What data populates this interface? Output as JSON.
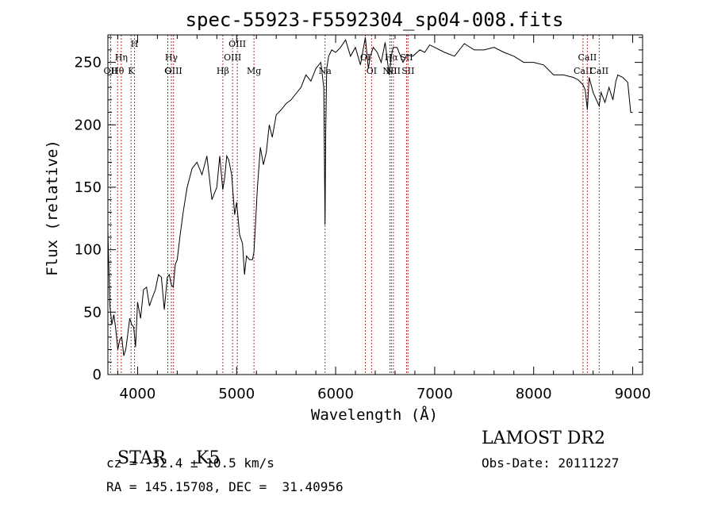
{
  "chart_data": {
    "type": "line",
    "title": "spec-55923-F5592304_sp04-008.fits",
    "xlabel": "Wavelength (Å)",
    "ylabel": "Flux (relative)",
    "xlim": [
      3700,
      9100
    ],
    "ylim": [
      0,
      272
    ],
    "xticks": [
      4000,
      5000,
      6000,
      7000,
      8000,
      9000
    ],
    "yticks": [
      0,
      50,
      100,
      150,
      200,
      250
    ],
    "grid": false,
    "series": [
      {
        "x": [
          3700,
          3720,
          3740,
          3760,
          3780,
          3800,
          3820,
          3840,
          3860,
          3880,
          3900,
          3920,
          3940,
          3960,
          3980,
          4000,
          4030,
          4060,
          4090,
          4120,
          4150,
          4180,
          4210,
          4240,
          4270,
          4300,
          4320,
          4340,
          4360,
          4380,
          4400,
          4430,
          4460,
          4500,
          4550,
          4600,
          4650,
          4700,
          4750,
          4800,
          4830,
          4860,
          4880,
          4900,
          4920,
          4950,
          4980,
          5000,
          5030,
          5060,
          5080,
          5100,
          5130,
          5160,
          5175,
          5190,
          5210,
          5240,
          5270,
          5300,
          5330,
          5360,
          5400,
          5450,
          5500,
          5550,
          5600,
          5650,
          5700,
          5750,
          5800,
          5850,
          5880,
          5893,
          5900,
          5910,
          5930,
          5960,
          6000,
          6050,
          6100,
          6150,
          6200,
          6250,
          6300,
          6330,
          6350,
          6380,
          6420,
          6460,
          6500,
          6540,
          6563,
          6580,
          6620,
          6680,
          6720,
          6780,
          6850,
          6900,
          6950,
          7000,
          7100,
          7200,
          7300,
          7400,
          7500,
          7600,
          7700,
          7800,
          7900,
          8000,
          8100,
          8200,
          8300,
          8400,
          8450,
          8498,
          8520,
          8542,
          8560,
          8600,
          8662,
          8680,
          8720,
          8760,
          8800,
          8830,
          8850,
          8900,
          8950,
          8980,
          9000
        ],
        "values": [
          115,
          55,
          40,
          48,
          36,
          20,
          28,
          30,
          15,
          20,
          32,
          45,
          40,
          38,
          22,
          58,
          45,
          68,
          70,
          55,
          62,
          68,
          80,
          78,
          52,
          78,
          80,
          72,
          70,
          88,
          92,
          112,
          130,
          150,
          165,
          170,
          160,
          175,
          140,
          150,
          175,
          148,
          158,
          175,
          172,
          160,
          128,
          138,
          112,
          105,
          80,
          95,
          92,
          92,
          98,
          120,
          150,
          182,
          168,
          178,
          200,
          190,
          208,
          212,
          217,
          220,
          225,
          230,
          240,
          235,
          245,
          250,
          230,
          120,
          195,
          245,
          255,
          260,
          258,
          262,
          268,
          255,
          262,
          248,
          270,
          245,
          255,
          262,
          258,
          250,
          266,
          240,
          255,
          262,
          262,
          250,
          256,
          255,
          260,
          258,
          264,
          262,
          258,
          255,
          265,
          260,
          260,
          262,
          258,
          255,
          250,
          250,
          248,
          240,
          240,
          238,
          236,
          232,
          228,
          212,
          238,
          226,
          215,
          226,
          218,
          230,
          220,
          235,
          240,
          238,
          234,
          210,
          210
        ]
      }
    ],
    "line_markers": [
      {
        "label": "OII",
        "x": 3727,
        "row": 3
      },
      {
        "label": "Hθ",
        "x": 3798,
        "row": 2
      },
      {
        "label": "Hη",
        "x": 3835,
        "row": 1
      },
      {
        "label": "K",
        "x": 3934,
        "row": 3
      },
      {
        "label": "H",
        "x": 3969,
        "row": 0
      },
      {
        "label": "Hγ",
        "x": 4341,
        "row": 1
      },
      {
        "label": "G",
        "x": 4305,
        "row": 2
      },
      {
        "label": "OIII",
        "x": 4363,
        "row": 3
      },
      {
        "label": "Hβ",
        "x": 4861,
        "row": 2
      },
      {
        "label": "OIII",
        "x": 4959,
        "row": 1
      },
      {
        "label": "OIII",
        "x": 5007,
        "row": 0
      },
      {
        "label": "Mg",
        "x": 5175,
        "row": 3
      },
      {
        "label": "Na",
        "x": 5893,
        "row": 2
      },
      {
        "label": "OI",
        "x": 6300,
        "row": 1
      },
      {
        "label": "OI",
        "x": 6363,
        "row": 3
      },
      {
        "label": "NII",
        "x": 6548,
        "row": 3
      },
      {
        "label": "Hα",
        "x": 6563,
        "row": 1
      },
      {
        "label": "NII",
        "x": 6583,
        "row": 2
      },
      {
        "label": "SII",
        "x": 6716,
        "row": 1
      },
      {
        "label": "SII",
        "x": 6731,
        "row": 3
      },
      {
        "label": "CaII",
        "x": 8498,
        "row": 2
      },
      {
        "label": "CaII",
        "x": 8542,
        "row": 1
      },
      {
        "label": "CaII",
        "x": 8662,
        "row": 3
      }
    ]
  },
  "info": {
    "class": "STAR",
    "subclass": "K5",
    "survey": "LAMOST DR2",
    "cz": "cz = -32.4 ± 10.5 km/s",
    "obs_date": "Obs-Date: 20111227",
    "radec": "RA = 145.15708, DEC =  31.40956"
  }
}
